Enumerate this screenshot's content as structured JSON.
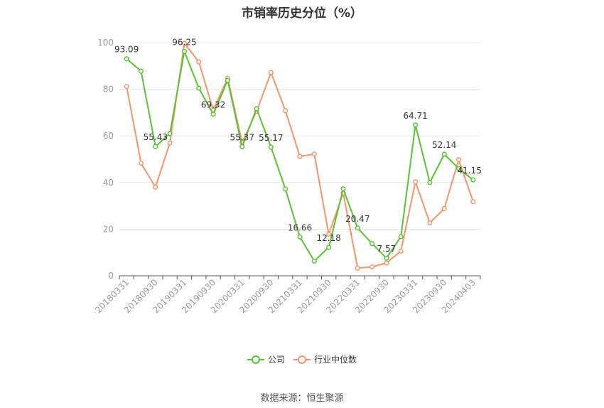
{
  "chart_data": {
    "type": "line",
    "title": "市销率历史分位（%）",
    "x_ticks": [
      "20180331",
      "20180930",
      "20190331",
      "20190930",
      "20200331",
      "20200930",
      "20210331",
      "20210930",
      "20220331",
      "20220930",
      "20230331",
      "20230930",
      "20240403"
    ],
    "ylim": [
      0,
      100
    ],
    "y_ticks": [
      0,
      20,
      40,
      60,
      80,
      100
    ],
    "grid": true,
    "legend_position": "bottom",
    "series": [
      {
        "name": "公司",
        "color": "#5bc236",
        "values": [
          93.09,
          87.8,
          55.43,
          61.0,
          96.25,
          80.5,
          69.32,
          83.8,
          55.37,
          71.7,
          55.17,
          37.2,
          16.66,
          6.3,
          12.18,
          37.3,
          20.47,
          13.8,
          7.57,
          16.8,
          64.71,
          40.0,
          52.14,
          46.0,
          41.15
        ],
        "labels": {
          "0": "93.09",
          "2": "55.43",
          "4": "96.25",
          "6": "69.32",
          "8": "55.37",
          "10": "55.17",
          "12": "16.66",
          "14": "12.18",
          "16": "20.47",
          "18": "7.57",
          "20": "64.71",
          "22": "52.14",
          "24": "41.15"
        }
      },
      {
        "name": "行业中位数",
        "color": "#f4956b",
        "values": [
          81.2,
          48.3,
          38.0,
          57.0,
          99.7,
          91.8,
          71.0,
          84.8,
          57.2,
          70.5,
          87.2,
          70.8,
          51.2,
          52.2,
          17.8,
          35.5,
          3.3,
          3.8,
          5.5,
          10.6,
          40.3,
          22.7,
          28.8,
          49.8,
          31.8
        ]
      }
    ]
  },
  "source": "数据来源：恒生聚源"
}
